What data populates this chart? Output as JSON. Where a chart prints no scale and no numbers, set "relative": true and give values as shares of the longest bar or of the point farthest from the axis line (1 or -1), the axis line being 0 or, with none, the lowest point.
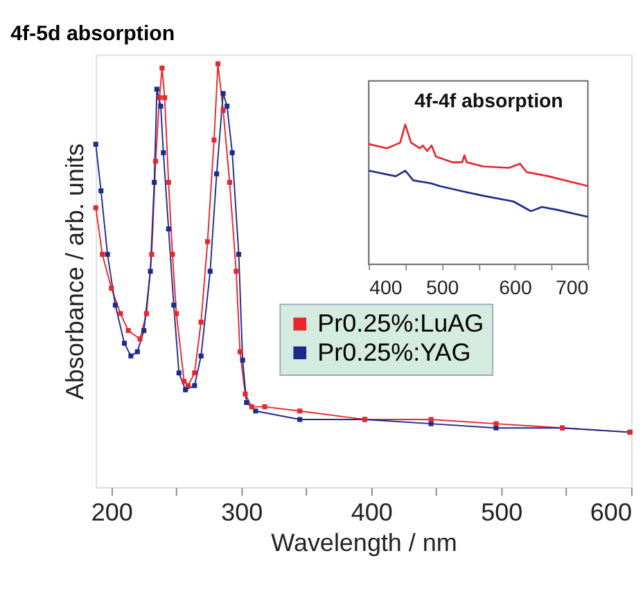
{
  "chart_data": [
    {
      "type": "line",
      "title": "4f-5d absorption",
      "xlabel": "Wavelength / nm",
      "ylabel": "Absorbance / arb. units",
      "relative": true,
      "xlim": [
        188,
        600
      ],
      "xticks": [
        200,
        {
          "value": 250,
          "label": null
        },
        300,
        {
          "value": 350,
          "label": null
        },
        400,
        {
          "value": 450,
          "label": null
        },
        500,
        {
          "value": 550,
          "label": null
        },
        600
      ],
      "marker": "square",
      "legend": "right",
      "grid": false,
      "series": [
        {
          "name": "Pr0.25%:LuAG",
          "color": "#e8262b",
          "x": [
            188,
            193,
            200,
            207,
            213,
            222,
            227,
            231,
            234,
            237,
            239,
            241,
            244,
            247,
            250,
            256,
            259,
            264,
            269,
            274,
            279,
            282,
            286,
            291,
            296,
            299,
            303,
            308,
            318,
            345,
            395,
            446,
            496,
            547,
            599
          ],
          "values": [
            0.66,
            0.55,
            0.47,
            0.41,
            0.37,
            0.35,
            0.41,
            0.55,
            0.77,
            0.92,
            0.99,
            0.92,
            0.72,
            0.55,
            0.41,
            0.25,
            0.24,
            0.27,
            0.39,
            0.58,
            0.82,
            1.0,
            0.89,
            0.72,
            0.51,
            0.32,
            0.22,
            0.19,
            0.19,
            0.18,
            0.16,
            0.16,
            0.15,
            0.14,
            0.13
          ]
        },
        {
          "name": "Pr0.25%:YAG",
          "color": "#1c2a8c",
          "x": [
            188,
            192,
            197,
            203,
            210,
            215,
            220,
            225,
            230,
            233,
            235,
            238,
            240,
            244,
            248,
            252,
            257,
            264,
            269,
            276,
            281,
            286,
            289,
            293,
            298,
            301,
            304,
            311,
            345,
            395,
            446,
            496,
            547,
            599
          ],
          "values": [
            0.81,
            0.7,
            0.55,
            0.43,
            0.34,
            0.31,
            0.32,
            0.37,
            0.51,
            0.72,
            0.94,
            0.9,
            0.79,
            0.61,
            0.43,
            0.27,
            0.23,
            0.24,
            0.31,
            0.51,
            0.74,
            0.93,
            0.9,
            0.79,
            0.55,
            0.3,
            0.2,
            0.18,
            0.16,
            0.16,
            0.15,
            0.14,
            0.14,
            0.13
          ]
        }
      ]
    },
    {
      "type": "line",
      "title": "4f-4f absorption",
      "relative": true,
      "xlim": [
        400,
        700
      ],
      "xticks": [
        400,
        {
          "value": 450,
          "label": null
        },
        500,
        {
          "value": 550,
          "label": null
        },
        600,
        {
          "value": 650,
          "label": null
        },
        700
      ],
      "grid": false,
      "series": [
        {
          "color": "#e8262b",
          "x": [
            400,
            425,
            443,
            450,
            458,
            470,
            474,
            480,
            486,
            492,
            515,
            528,
            531,
            534,
            557,
            592,
            607,
            616,
            646,
            700
          ],
          "values": [
            0.86,
            0.83,
            0.87,
            1.0,
            0.87,
            0.83,
            0.85,
            0.81,
            0.85,
            0.77,
            0.73,
            0.73,
            0.78,
            0.73,
            0.7,
            0.69,
            0.72,
            0.66,
            0.63,
            0.56
          ]
        },
        {
          "color": "#1c2a8c",
          "x": [
            400,
            437,
            450,
            461,
            485,
            497,
            530,
            557,
            598,
            622,
            637,
            658,
            700
          ],
          "values": [
            0.67,
            0.63,
            0.67,
            0.6,
            0.58,
            0.56,
            0.52,
            0.49,
            0.45,
            0.38,
            0.41,
            0.39,
            0.34
          ]
        }
      ]
    }
  ]
}
